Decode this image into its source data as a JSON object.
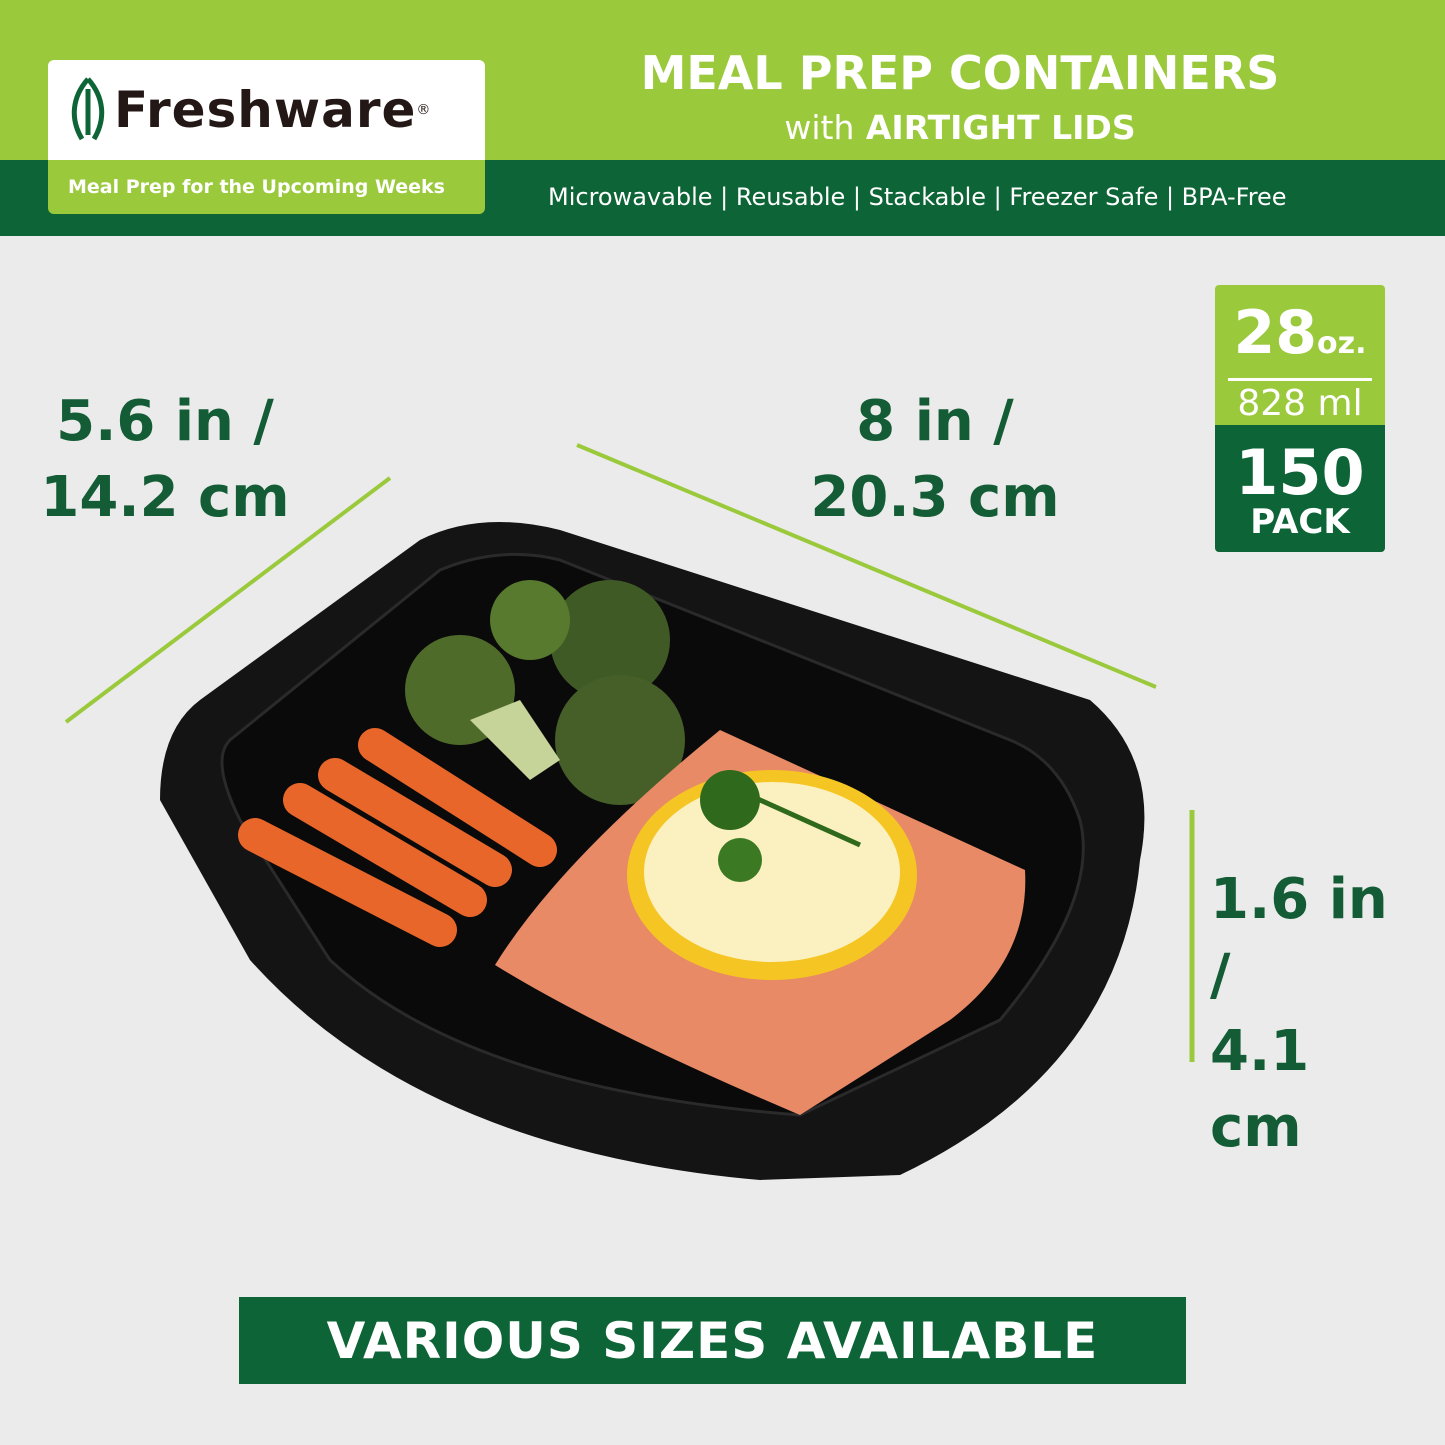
{
  "brand": {
    "name": "Freshware",
    "registered": "®",
    "tagline": "Meal Prep for the Upcoming Weeks"
  },
  "header": {
    "title": "MEAL PREP CONTAINERS",
    "subtitle_prefix": "with",
    "subtitle_bold": "AIRTIGHT LIDS",
    "features": "Microwavable | Reusable | Stackable | Freezer Safe | BPA-Free"
  },
  "dimensions": {
    "width": {
      "line1": "5.6 in /",
      "line2": "14.2 cm"
    },
    "length": {
      "line1": "8 in /",
      "line2": "20.3 cm"
    },
    "height": {
      "line1": "1.6 in /",
      "line2": "4.1 cm"
    }
  },
  "badge": {
    "capacity": "28",
    "capacity_unit": "oz.",
    "metric": "828 ml",
    "count": "150",
    "count_label": "PACK"
  },
  "footer": {
    "text": "VARIOUS SIZES AVAILABLE"
  },
  "colors": {
    "light_green": "#9bc93c",
    "dark_green": "#0d6436",
    "text_green": "#135c35",
    "background": "#ebebeb"
  }
}
